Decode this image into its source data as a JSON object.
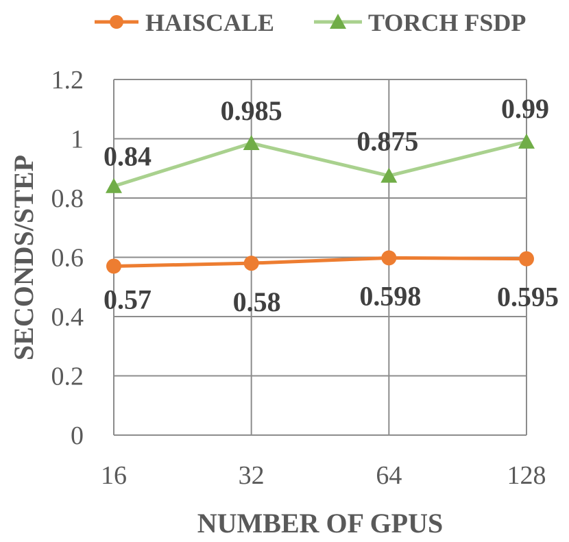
{
  "chart_data": {
    "type": "line",
    "categories": [
      "16",
      "32",
      "64",
      "128"
    ],
    "series": [
      {
        "name": "HAISCALE",
        "values": [
          0.57,
          0.58,
          0.598,
          0.595
        ],
        "color": "#ED7D31",
        "marker": "circle"
      },
      {
        "name": "TORCH FSDP",
        "values": [
          0.84,
          0.985,
          0.875,
          0.99
        ],
        "color": "#A9D18E",
        "marker_color": "#70AD47",
        "marker": "triangle"
      }
    ],
    "data_labels": [
      [
        "0.57",
        "0.58",
        "0.598",
        "0.595"
      ],
      [
        "0.84",
        "0.985",
        "0.875",
        "0.99"
      ]
    ],
    "xlabel": "NUMBER OF GPUS",
    "ylabel": "SECONDS/STEP",
    "ylim": [
      0,
      1.2
    ],
    "yticks": [
      "0",
      "0.2",
      "0.4",
      "0.6",
      "0.8",
      "1",
      "1.2"
    ],
    "grid": true,
    "legend_position": "top"
  }
}
